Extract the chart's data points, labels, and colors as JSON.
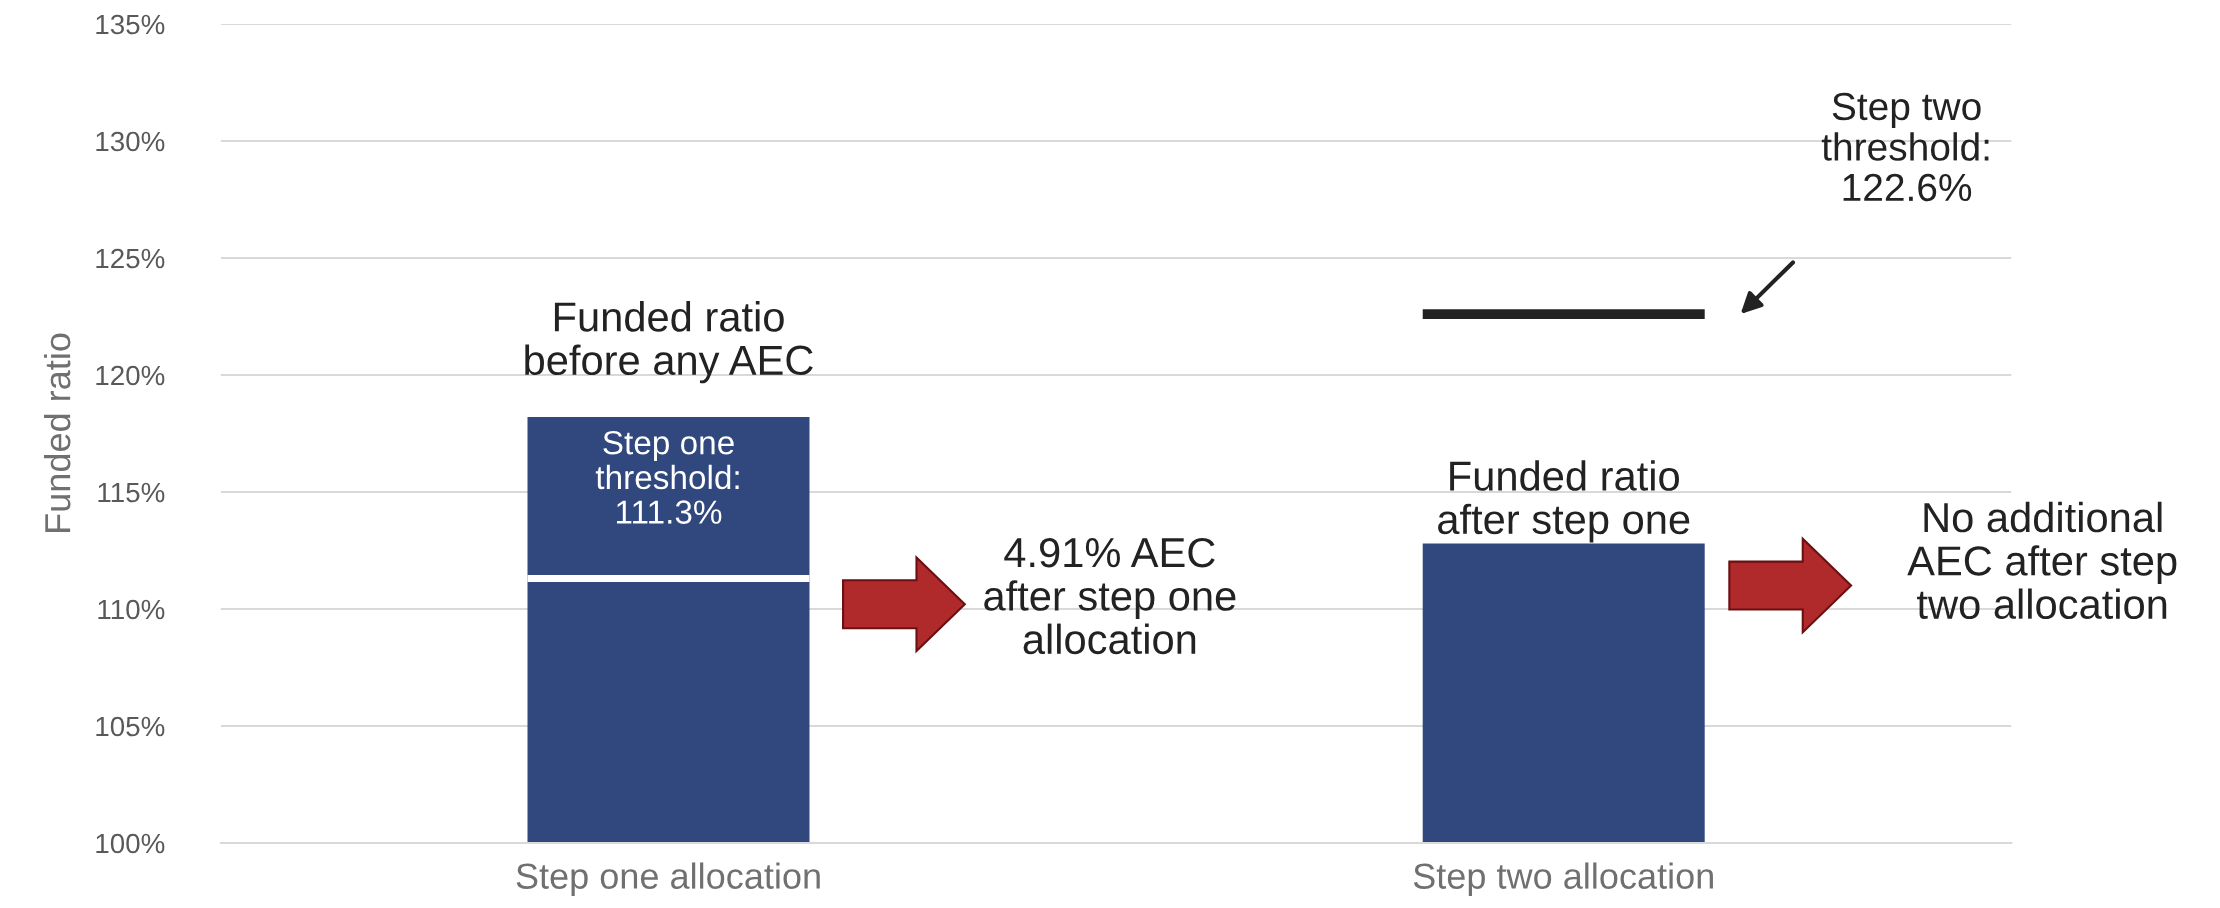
{
  "chart_data": {
    "type": "bar",
    "ylabel": "Funded ratio",
    "categories": [
      "Step one allocation",
      "Step two allocation"
    ],
    "values": [
      118.2,
      112.8
    ],
    "color": "#31487f",
    "ylim": [
      100,
      135
    ],
    "yticks": [
      {
        "value": 100,
        "label": "100%"
      },
      {
        "value": 105,
        "label": "105%"
      },
      {
        "value": 110,
        "label": "110%"
      },
      {
        "value": 115,
        "label": "115%"
      },
      {
        "value": 120,
        "label": "120%"
      },
      {
        "value": 125,
        "label": "125%"
      },
      {
        "value": 130,
        "label": "130%"
      },
      {
        "value": 135,
        "label": "135%"
      }
    ],
    "grid": "y",
    "ref_lines": [
      {
        "axis": "y",
        "value": 111.3,
        "label": "Step one\nthreshold:\n111.3%",
        "color": "#ffffff"
      },
      {
        "axis": "y",
        "value": 122.6,
        "label": "Step two\nthreshold:\n122.6%",
        "color": "#222222"
      }
    ],
    "annotations": [
      "Funded ratio\nbefore any AEC",
      "4.91% AEC\nafter step one\nallocation",
      "Funded ratio\nafter step one",
      "No additional\nAEC after step\ntwo allocation"
    ]
  }
}
